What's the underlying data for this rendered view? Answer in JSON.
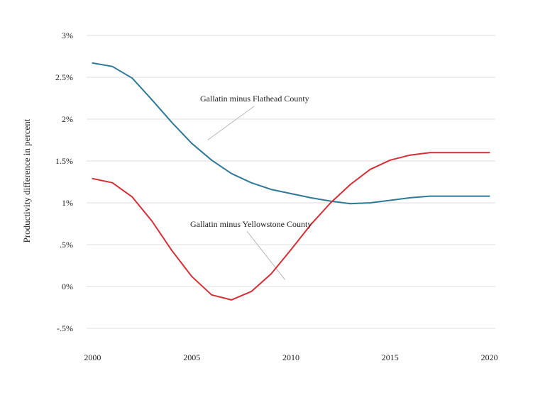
{
  "chart_data": {
    "type": "line",
    "title": "",
    "xlabel": "",
    "ylabel": "Productivity difference in percent",
    "xlim": [
      1999.7,
      2020.3
    ],
    "ylim": [
      -0.5,
      3
    ],
    "x_ticks": [
      {
        "value": 2000,
        "label": "2000"
      },
      {
        "value": 2005,
        "label": "2005"
      },
      {
        "value": 2010,
        "label": "2010"
      },
      {
        "value": 2015,
        "label": "2015"
      },
      {
        "value": 2020,
        "label": "2020"
      }
    ],
    "y_ticks": [
      {
        "value": 3,
        "label": "3%"
      },
      {
        "value": 2.5,
        "label": "2.5%"
      },
      {
        "value": 2,
        "label": "2%"
      },
      {
        "value": 1.5,
        "label": "1.5%"
      },
      {
        "value": 1,
        "label": "1%"
      },
      {
        "value": 0.5,
        "label": ".5%"
      },
      {
        "value": 0,
        "label": "0%"
      },
      {
        "value": -0.5,
        "label": "-.5%"
      }
    ],
    "grid": true,
    "legend": "none",
    "series": [
      {
        "key": "flathead",
        "color": "#2e7898",
        "x": [
          2000,
          2001,
          2002,
          2003,
          2004,
          2005,
          2006,
          2007,
          2008,
          2009,
          2010,
          2011,
          2012,
          2013,
          2014,
          2015,
          2016,
          2017,
          2018,
          2019,
          2020
        ],
        "y": [
          2.67,
          2.63,
          2.49,
          2.23,
          1.96,
          1.71,
          1.51,
          1.35,
          1.24,
          1.16,
          1.11,
          1.06,
          1.02,
          0.99,
          1.0,
          1.03,
          1.06,
          1.08,
          1.08,
          1.08,
          1.08
        ]
      },
      {
        "key": "yellowstone",
        "color": "#d62e35",
        "x": [
          2000,
          2001,
          2002,
          2003,
          2004,
          2005,
          2006,
          2007,
          2008,
          2009,
          2010,
          2011,
          2012,
          2013,
          2014,
          2015,
          2016,
          2017,
          2018,
          2019,
          2020
        ],
        "y": [
          1.29,
          1.24,
          1.07,
          0.78,
          0.43,
          0.12,
          -0.1,
          -0.16,
          -0.06,
          0.15,
          0.44,
          0.74,
          1.0,
          1.22,
          1.4,
          1.51,
          1.57,
          1.6,
          1.6,
          1.6,
          1.6
        ]
      }
    ],
    "annotations": [
      {
        "text": "Gallatin minus Flathead County",
        "points_to": {
          "x": 2005.8,
          "y": 1.75
        }
      },
      {
        "text": "Gallatin minus Yellowstone County",
        "points_to": {
          "x": 2009.7,
          "y": 0.08
        }
      }
    ]
  }
}
